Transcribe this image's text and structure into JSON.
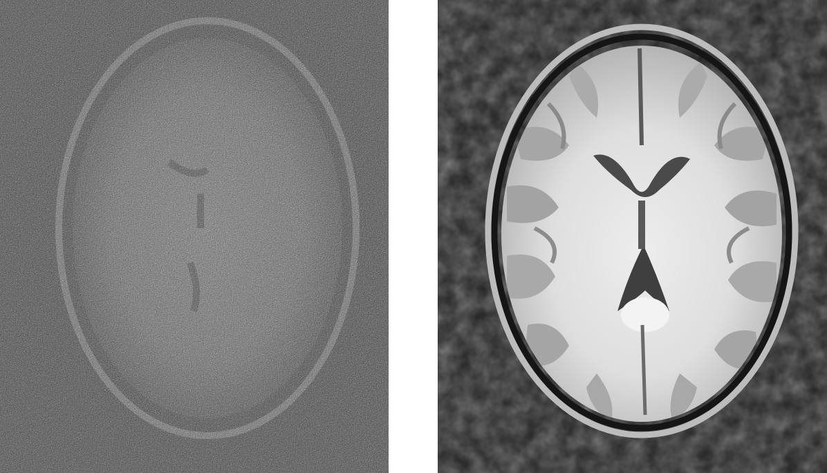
{
  "images": [
    {
      "id": "noisy",
      "description": "",
      "colors": {
        "background": "#2a2a2a",
        "skull": "#7a7a7a",
        "tissue": "#6a6a6a",
        "noise_light": "#9a9a9a"
      }
    },
    {
      "id": "clean",
      "description": "",
      "colors": {
        "background": "#1f1f1f",
        "skull": "#c8c8c8",
        "csf": "#1a1a1a",
        "gray_matter": "#a9a9a9",
        "white_matter": "#e6e6e6",
        "ventricle": "#4a4a4a"
      }
    }
  ]
}
